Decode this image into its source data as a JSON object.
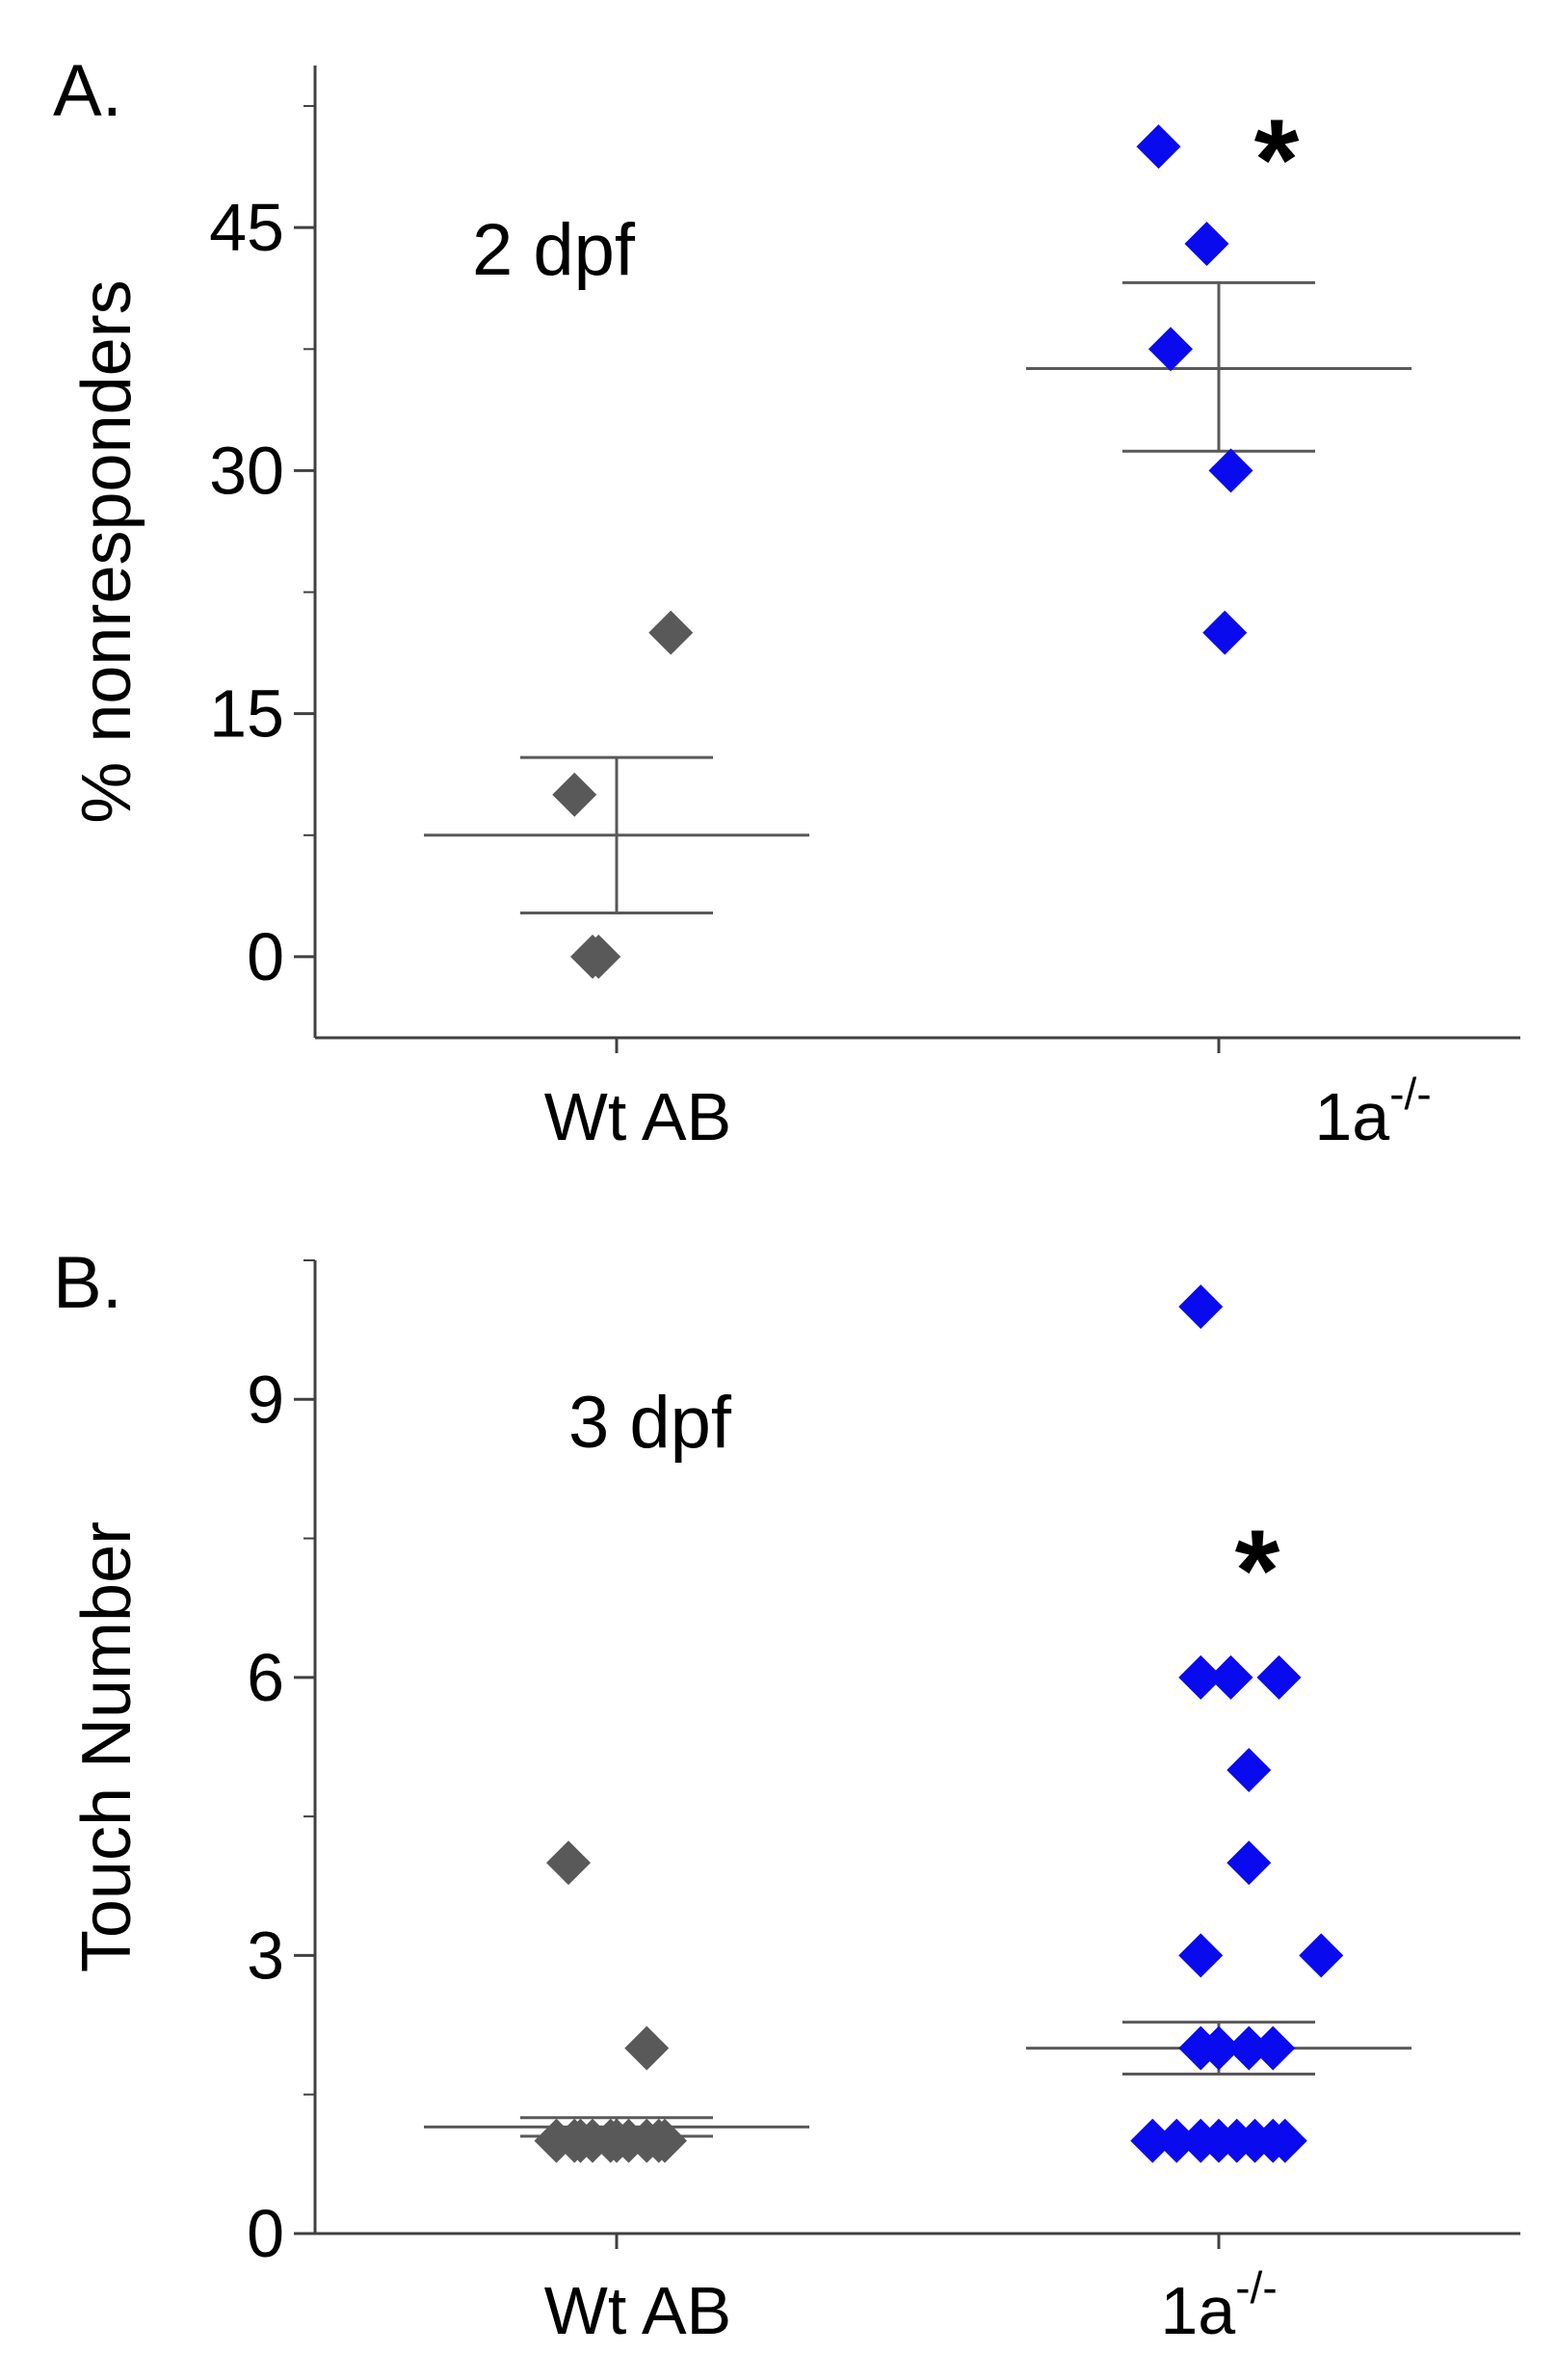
{
  "chart_data": [
    {
      "panel_label": "A.",
      "type": "scatter",
      "annotation": "2 dpf",
      "ylabel": "% nonresponders",
      "xlabel": "",
      "ylim": [
        -5,
        55
      ],
      "yticks": [
        0,
        15,
        30,
        45
      ],
      "categories": [
        {
          "base": "Wt AB",
          "sup": ""
        },
        {
          "base": "1a",
          "sup": "-/-"
        }
      ],
      "series": [
        {
          "name": "Wt AB",
          "color": "#595959",
          "points": [
            {
              "x": 0.09,
              "y": 20
            },
            {
              "x": -0.07,
              "y": 10
            },
            {
              "x": -0.04,
              "y": 0
            },
            {
              "x": -0.03,
              "y": 0
            }
          ],
          "mean": 7.5,
          "sem": [
            2.7,
            12.3
          ]
        },
        {
          "name": "1a-/-",
          "color": "#0a0aee",
          "points": [
            {
              "x": -0.1,
              "y": 50
            },
            {
              "x": -0.02,
              "y": 44
            },
            {
              "x": -0.08,
              "y": 37.5
            },
            {
              "x": 0.02,
              "y": 30
            },
            {
              "x": 0.01,
              "y": 20
            }
          ],
          "mean": 36.3,
          "sem": [
            31.2,
            41.6
          ]
        }
      ],
      "significance": {
        "text": "*",
        "category": 1,
        "y": 50
      }
    },
    {
      "panel_label": "B.",
      "type": "scatter",
      "annotation": "3 dpf",
      "ylabel": "Touch Number",
      "xlabel": "",
      "ylim": [
        0,
        10.5
      ],
      "yticks": [
        0,
        3,
        6,
        9
      ],
      "categories": [
        {
          "base": "Wt AB",
          "sup": ""
        },
        {
          "base": "1a",
          "sup": "-/-"
        }
      ],
      "series": [
        {
          "name": "Wt AB",
          "color": "#595959",
          "points": [
            {
              "x": -0.08,
              "y": 4
            },
            {
              "x": 0.05,
              "y": 2
            },
            {
              "x": -0.1,
              "y": 1
            },
            {
              "x": -0.07,
              "y": 1
            },
            {
              "x": -0.04,
              "y": 1
            },
            {
              "x": -0.01,
              "y": 1
            },
            {
              "x": 0.02,
              "y": 1
            },
            {
              "x": 0.05,
              "y": 1
            },
            {
              "x": 0.08,
              "y": 1
            },
            {
              "x": -0.06,
              "y": 1
            },
            {
              "x": 0.0,
              "y": 1
            },
            {
              "x": 0.07,
              "y": 1
            }
          ],
          "mean": 1.15,
          "sem": [
            1.05,
            1.25
          ]
        },
        {
          "name": "1a-/-",
          "color": "#0a0aee",
          "points": [
            {
              "x": -0.03,
              "y": 10
            },
            {
              "x": -0.03,
              "y": 6
            },
            {
              "x": 0.02,
              "y": 6
            },
            {
              "x": 0.1,
              "y": 6
            },
            {
              "x": 0.05,
              "y": 5
            },
            {
              "x": 0.05,
              "y": 4
            },
            {
              "x": -0.03,
              "y": 3
            },
            {
              "x": 0.17,
              "y": 3
            },
            {
              "x": -0.03,
              "y": 2
            },
            {
              "x": 0.0,
              "y": 2
            },
            {
              "x": 0.05,
              "y": 2
            },
            {
              "x": 0.09,
              "y": 2
            },
            {
              "x": -0.11,
              "y": 1
            },
            {
              "x": -0.07,
              "y": 1
            },
            {
              "x": -0.03,
              "y": 1
            },
            {
              "x": 0.0,
              "y": 1
            },
            {
              "x": 0.03,
              "y": 1
            },
            {
              "x": 0.06,
              "y": 1
            },
            {
              "x": 0.09,
              "y": 1
            },
            {
              "x": 0.11,
              "y": 1
            }
          ],
          "mean": 2.0,
          "sem": [
            1.72,
            2.28
          ]
        }
      ],
      "significance": {
        "text": "*",
        "category": 1,
        "y": 7.3
      }
    }
  ]
}
